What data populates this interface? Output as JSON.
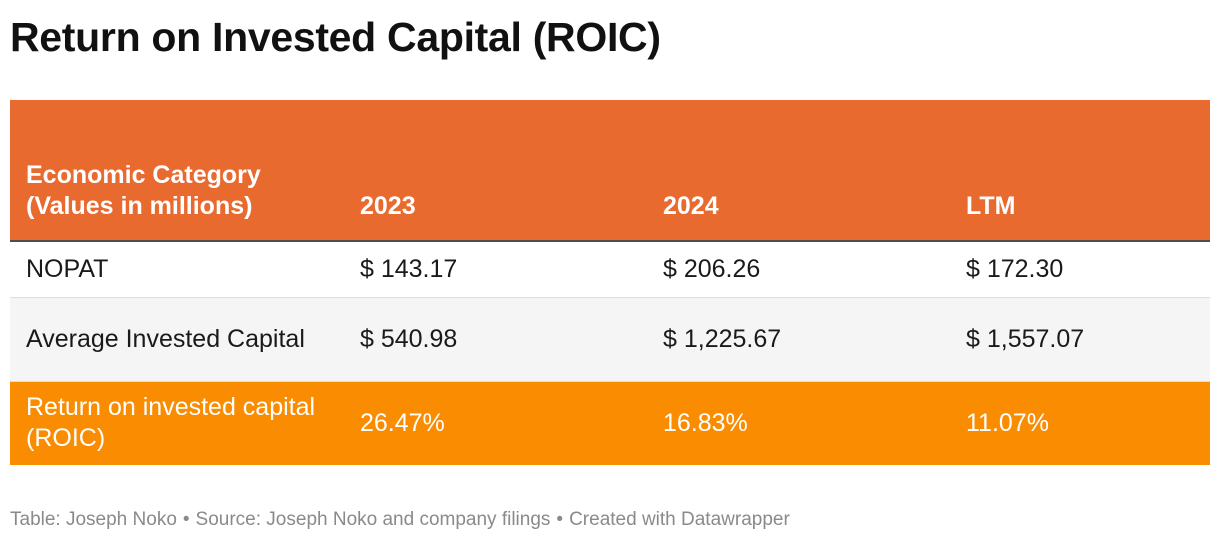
{
  "title": "Return on Invested Capital (ROIC)",
  "chart_data": {
    "type": "table",
    "columns": [
      "Economic Category (Values in millions)",
      "2023",
      "2024",
      "LTM"
    ],
    "rows": [
      {
        "label": "NOPAT",
        "values": [
          "$ 143.17",
          "$ 206.26",
          "$ 172.30"
        ]
      },
      {
        "label": "Average Invested Capital",
        "values": [
          "$ 540.98",
          "$ 1,225.67",
          "$ 1,557.07"
        ]
      },
      {
        "label": "Return on invested capital (ROIC)",
        "values": [
          "26.47%",
          "16.83%",
          "11.07%"
        ]
      }
    ]
  },
  "colors": {
    "header_background": "#e86a2f",
    "highlight_row_background": "#f98c00",
    "alternate_row_background": "#f5f5f5"
  },
  "footer": {
    "table_credit": "Table: Joseph Noko",
    "source": "Source: Joseph Noko and company filings",
    "created_with": "Created with Datawrapper",
    "separator": "•"
  }
}
